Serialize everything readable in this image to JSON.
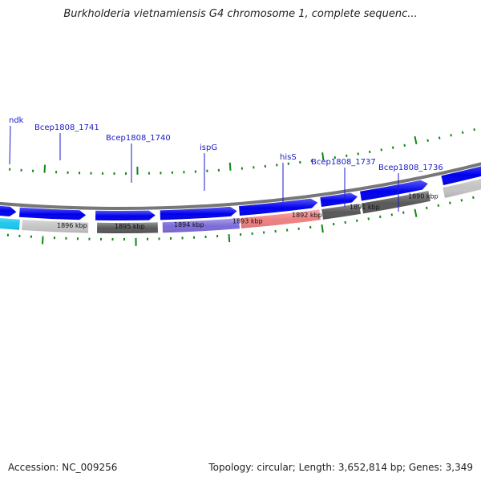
{
  "title": "Burkholderia vietnamiensis G4 chromosome 1, complete sequenc...",
  "footer": {
    "accession": "Accession: NC_009256",
    "summary": "Topology: circular; Length: 3,652,814 bp; Genes: 3,349"
  },
  "colors": {
    "cds": "#0000ee",
    "tick": "#118811",
    "backbone": "#777777",
    "label": "#1a1ac8",
    "gene_palette": {
      "cyan": "#1cc8f0",
      "lightgray": "#c4c4c4",
      "darkgray": "#585858",
      "purple": "#7c6cd8",
      "salmon": "#ee8080"
    }
  },
  "genome": {
    "kbp_ticks": [
      "1896 kbp",
      "1895 kbp",
      "1894 kbp",
      "1893 kbp",
      "1892 kbp",
      "1891 kbp",
      "1890 kbp"
    ],
    "genes": [
      {
        "name": "ndk",
        "color": "cyan",
        "strand": "reverse"
      },
      {
        "name": "Bcep1808_1741",
        "color": "lightgray",
        "strand": "reverse"
      },
      {
        "name": "Bcep1808_1740",
        "color": "darkgray",
        "strand": "reverse"
      },
      {
        "name": "ispG",
        "color": "purple",
        "strand": "reverse"
      },
      {
        "name": "hisS",
        "color": "salmon",
        "strand": "reverse"
      },
      {
        "name": "Bcep1808_1737",
        "color": "darkgray",
        "strand": "reverse"
      },
      {
        "name": "Bcep1808_1736",
        "color": "darkgray",
        "strand": "reverse"
      },
      {
        "name": "",
        "color": "lightgray",
        "strand": "reverse"
      }
    ]
  }
}
